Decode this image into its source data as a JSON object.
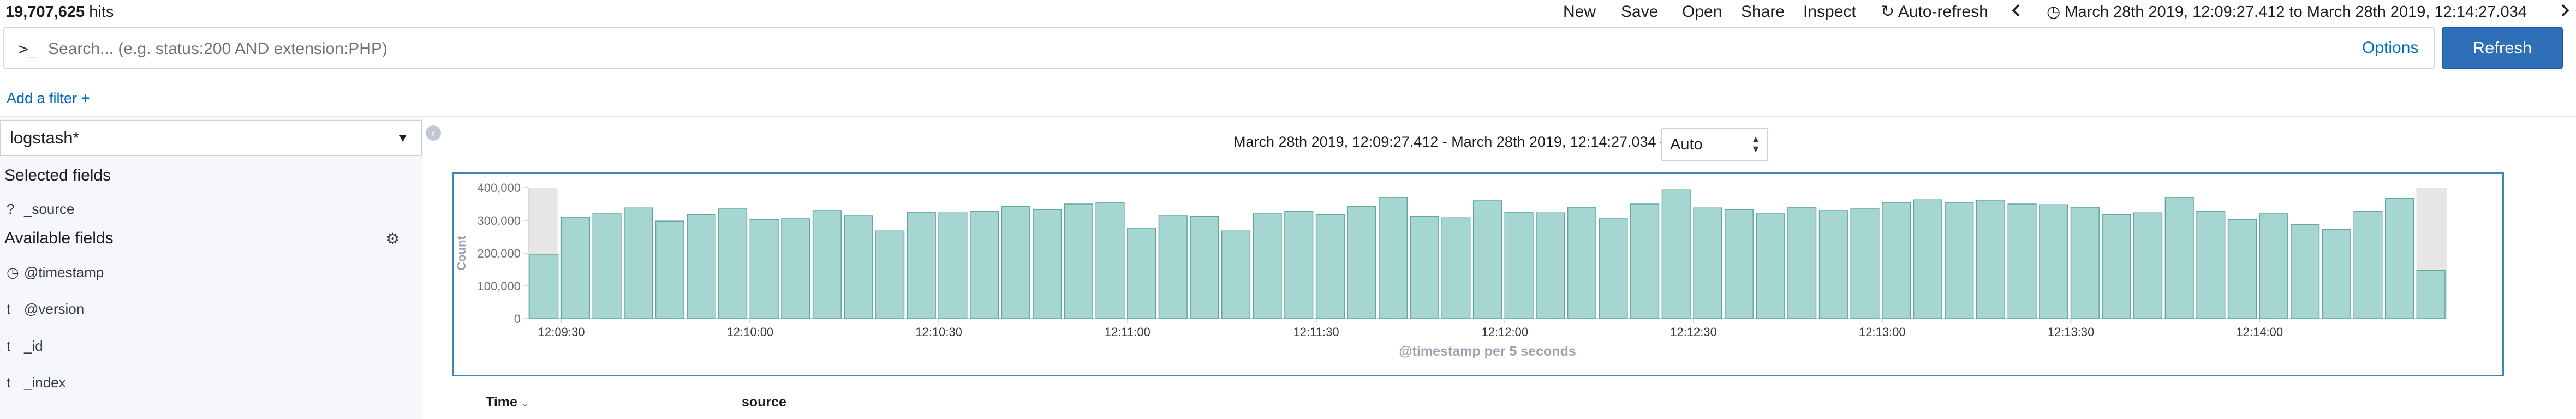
{
  "top": {
    "hits_count": "19,707,625",
    "hits_label": "hits",
    "menu": {
      "new": "New",
      "save": "Save",
      "open": "Open",
      "share": "Share",
      "inspect": "Inspect",
      "auto_refresh": "Auto-refresh"
    },
    "time_range": "March 28th 2019, 12:09:27.412 to March 28th 2019, 12:14:27.034"
  },
  "query": {
    "prompt": ">_",
    "placeholder": "Search... (e.g. status:200 AND extension:PHP)",
    "options_label": "Options",
    "refresh_label": "Refresh"
  },
  "filter": {
    "add_label": "Add a filter"
  },
  "sidebar": {
    "index_pattern": "logstash*",
    "selected_title": "Selected fields",
    "selected_fields": [
      {
        "type": "?",
        "name": "_source"
      }
    ],
    "available_title": "Available fields",
    "available_fields": [
      {
        "type": "◷",
        "name": "@timestamp"
      },
      {
        "type": "t",
        "name": "@version"
      },
      {
        "type": "t",
        "name": "_id"
      },
      {
        "type": "t",
        "name": "_index"
      }
    ]
  },
  "histogram": {
    "range_text": "March 28th 2019, 12:09:27.412 - March 28th 2019, 12:14:27.034 —",
    "interval": "Auto"
  },
  "table": {
    "col_time": "Time",
    "col_source": "_source"
  },
  "colors": {
    "bar_fill": "#a6d6d1",
    "bar_stroke": "#5fa59d",
    "accent": "#006bb8",
    "refresh_button": "#2f6fb8"
  },
  "chart_data": {
    "type": "bar",
    "title": "",
    "xlabel": "@timestamp per 5 seconds",
    "ylabel": "Count",
    "ylim": [
      0,
      400000
    ],
    "yticks": [
      "0",
      "100,000",
      "200,000",
      "300,000",
      "400,000"
    ],
    "xticks": [
      "12:09:30",
      "12:10:00",
      "12:10:30",
      "12:11:00",
      "12:11:30",
      "12:12:00",
      "12:12:30",
      "12:13:00",
      "12:13:30",
      "12:14:00"
    ],
    "grid": false,
    "bucket_start": "12:09:25",
    "bucket_seconds": 5,
    "values": [
      195000,
      310000,
      320000,
      338000,
      298000,
      318000,
      335000,
      303000,
      305000,
      330000,
      315000,
      268000,
      325000,
      323000,
      327000,
      343000,
      333000,
      350000,
      355000,
      277000,
      315000,
      313000,
      268000,
      322000,
      327000,
      318000,
      342000,
      370000,
      312000,
      308000,
      360000,
      325000,
      323000,
      340000,
      305000,
      350000,
      393000,
      338000,
      333000,
      322000,
      340000,
      330000,
      337000,
      355000,
      363000,
      355000,
      362000,
      350000,
      348000,
      340000,
      318000,
      323000,
      370000,
      328000,
      303000,
      320000,
      287000,
      272000,
      328000,
      367000,
      148000
    ]
  }
}
